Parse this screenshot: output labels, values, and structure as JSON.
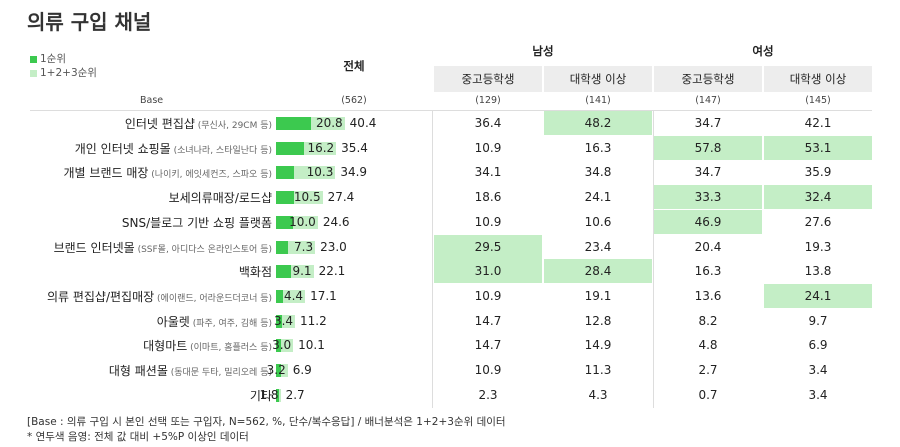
{
  "title": "의류 구입 채널",
  "legend": [
    {
      "label": "1순위",
      "color": "#3cc94f"
    },
    {
      "label": "1+2+3순위",
      "color": "#c4eec6"
    }
  ],
  "headers": {
    "total": "전체",
    "groups": [
      "남성",
      "여성"
    ],
    "subgroups": [
      "중고등학생",
      "대학생 이상",
      "중고등학생",
      "대학생 이상"
    ]
  },
  "base": {
    "label": "Base",
    "total": "(562)",
    "values": [
      "(129)",
      "(141)",
      "(147)",
      "(145)"
    ]
  },
  "chart_data": {
    "type": "bar",
    "title": "의류 구입 채널",
    "series_names": [
      "1순위",
      "1+2+3순위"
    ],
    "xlim": [
      0,
      45
    ],
    "rows": [
      {
        "label": "인터넷 편집샵",
        "sub": "(무신사, 29CM 등)",
        "first": 20.8,
        "total": 40.4,
        "cols": [
          "36.4",
          "48.2",
          "34.7",
          "42.1"
        ],
        "hl": [
          false,
          true,
          false,
          false
        ]
      },
      {
        "label": "개인 인터넷 쇼핑몰",
        "sub": "(소녀나라, 스타일난다 등)",
        "first": 16.2,
        "total": 35.4,
        "cols": [
          "10.9",
          "16.3",
          "57.8",
          "53.1"
        ],
        "hl": [
          false,
          false,
          true,
          true
        ]
      },
      {
        "label": "개별 브랜드 매장",
        "sub": "(나이키, 에잇세컨즈, 스파오 등)",
        "first": 10.3,
        "total": 34.9,
        "cols": [
          "34.1",
          "34.8",
          "34.7",
          "35.9"
        ],
        "hl": [
          false,
          false,
          false,
          false
        ]
      },
      {
        "label": "보세의류매장/로드샵",
        "sub": "",
        "first": 10.5,
        "total": 27.4,
        "cols": [
          "18.6",
          "24.1",
          "33.3",
          "32.4"
        ],
        "hl": [
          false,
          false,
          true,
          true
        ]
      },
      {
        "label": "SNS/블로그 기반 쇼핑 플랫폼",
        "sub": "",
        "first": 10.0,
        "total": 24.6,
        "cols": [
          "10.9",
          "10.6",
          "46.9",
          "27.6"
        ],
        "hl": [
          false,
          false,
          true,
          false
        ]
      },
      {
        "label": "브랜드 인터넷몰",
        "sub": "(SSF몰, 아디다스 온라인스토어 등)",
        "first": 7.3,
        "total": 23.0,
        "cols": [
          "29.5",
          "23.4",
          "20.4",
          "19.3"
        ],
        "hl": [
          true,
          false,
          false,
          false
        ]
      },
      {
        "label": "백화점",
        "sub": "",
        "first": 9.1,
        "total": 22.1,
        "cols": [
          "31.0",
          "28.4",
          "16.3",
          "13.8"
        ],
        "hl": [
          true,
          true,
          false,
          false
        ]
      },
      {
        "label": "의류 편집샵/편집매장",
        "sub": "(에이랜드, 어라운드더코너 등)",
        "first": 4.4,
        "total": 17.1,
        "cols": [
          "10.9",
          "19.1",
          "13.6",
          "24.1"
        ],
        "hl": [
          false,
          false,
          false,
          true
        ]
      },
      {
        "label": "아울렛",
        "sub": "(파주, 여주, 김해 등)",
        "first": 3.4,
        "total": 11.2,
        "cols": [
          "14.7",
          "12.8",
          "8.2",
          "9.7"
        ],
        "hl": [
          false,
          false,
          false,
          false
        ]
      },
      {
        "label": "대형마트",
        "sub": "(이마트, 홈플러스 등)",
        "first": 3.0,
        "total": 10.1,
        "cols": [
          "14.7",
          "14.9",
          "4.8",
          "6.9"
        ],
        "hl": [
          false,
          false,
          false,
          false
        ]
      },
      {
        "label": "대형 패션몰",
        "sub": "(동대문 두타, 밀리오레 등)",
        "first": 3.2,
        "total": 6.9,
        "cols": [
          "10.9",
          "11.3",
          "2.7",
          "3.4"
        ],
        "hl": [
          false,
          false,
          false,
          false
        ]
      },
      {
        "label": "기타",
        "sub": "",
        "first": 1.8,
        "total": 2.7,
        "cols": [
          "2.3",
          "4.3",
          "0.7",
          "3.4"
        ],
        "hl": [
          false,
          false,
          false,
          false
        ]
      }
    ]
  },
  "footnotes": [
    "[Base : 의류 구입 시 본인 선택 또는 구입자, N=562, %, 단수/복수응답] / 배너분석은 1+2+3순위 데이터",
    "* 연두색 음영: 전체 값 대비 +5%P 이상인 데이터"
  ]
}
